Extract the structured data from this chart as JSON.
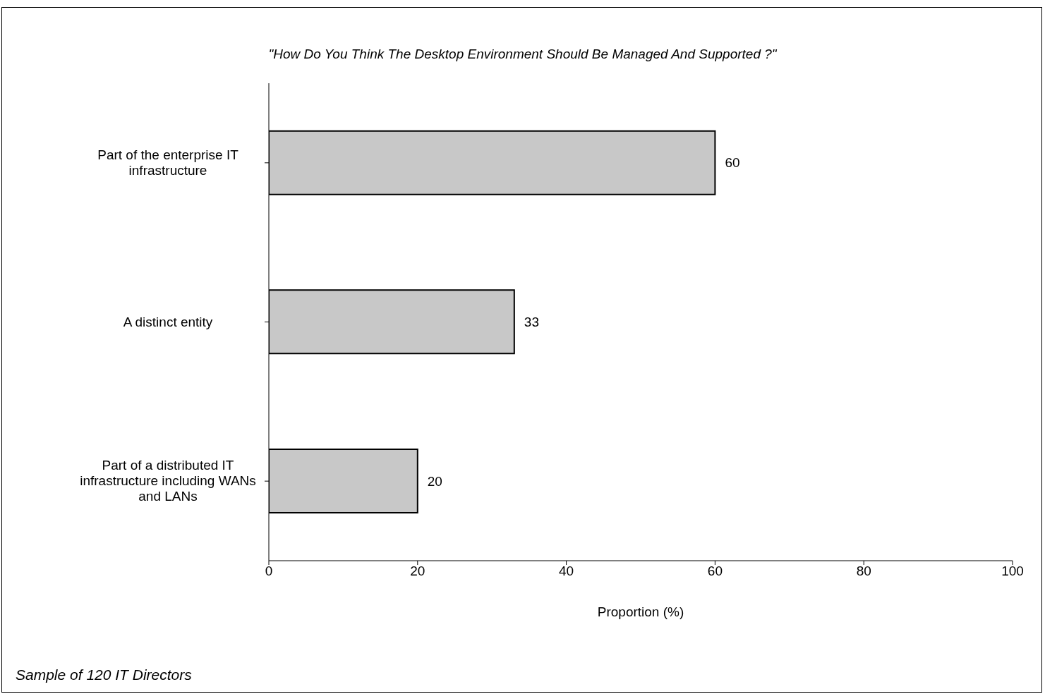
{
  "chart_data": {
    "type": "bar",
    "orientation": "horizontal",
    "title": "\"How Do You Think The Desktop Environment Should Be Managed And Supported ?\"",
    "xlabel": "Proportion (%)",
    "categories": [
      "Part of the enterprise IT infrastructure",
      "A distinct entity",
      "Part of a distributed IT infrastructure including WANs and LANs"
    ],
    "values": [
      60,
      33,
      20
    ],
    "color": "#c8c8c8",
    "xlim": [
      0,
      100
    ],
    "xticks": [
      0,
      20,
      40,
      60,
      80,
      100
    ],
    "data_labels": true,
    "grid": false,
    "legend": false,
    "annotations": [
      "Sample of 120 IT Directors"
    ]
  }
}
